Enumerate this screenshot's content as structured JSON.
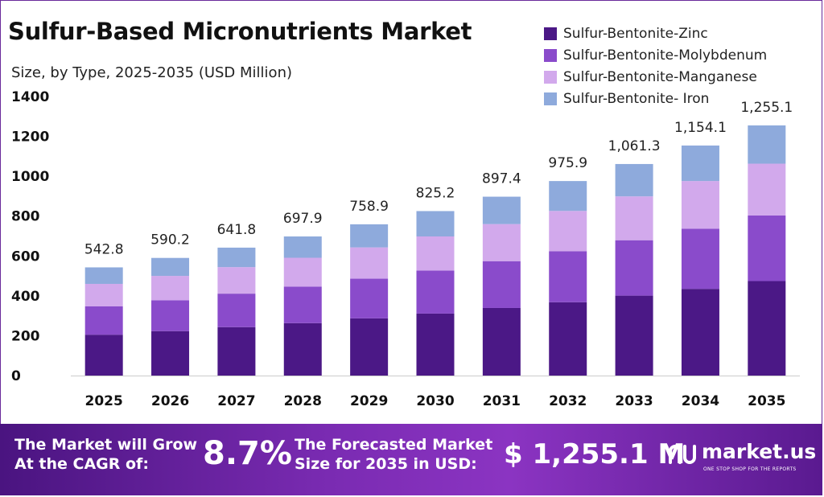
{
  "header": {
    "title": "Sulfur-Based Micronutrients Market",
    "subtitle": "Size, by Type, 2025-2035 (USD Million)"
  },
  "chart_data": {
    "type": "bar",
    "stacked": true,
    "title": "Sulfur-Based Micronutrients Market",
    "subtitle": "Size, by Type, 2025-2035 (USD Million)",
    "xlabel": "",
    "ylabel": "",
    "categories": [
      "2025",
      "2026",
      "2027",
      "2028",
      "2029",
      "2030",
      "2031",
      "2032",
      "2033",
      "2034",
      "2035"
    ],
    "ylim": [
      0,
      1400
    ],
    "yticks": [
      "0",
      "200",
      "400",
      "600",
      "800",
      "1000",
      "1200",
      "1400"
    ],
    "grid": false,
    "legend_position": "top-right",
    "series": [
      {
        "name": "Sulfur-Bentonite-Zinc",
        "color": "#4b1886",
        "values": [
          205,
          223,
          243,
          263,
          287,
          311,
          339,
          368,
          401,
          435,
          474
        ]
      },
      {
        "name": "Sulfur-Bentonite-Molybdenum",
        "color": "#8a4bcb",
        "values": [
          142,
          155,
          168,
          183,
          199,
          216,
          235,
          256,
          278,
          302,
          329
        ]
      },
      {
        "name": "Sulfur-Bentonite-Manganese",
        "color": "#d2a9ec",
        "values": [
          113,
          122,
          133,
          145,
          157,
          171,
          186,
          202,
          220,
          239,
          260
        ]
      },
      {
        "name": "Sulfur-Bentonite- Iron",
        "color": "#8eaadc",
        "values": [
          82.8,
          90.2,
          97.8,
          106.9,
          115.9,
          127.2,
          137.4,
          149.9,
          162.3,
          178.1,
          192.1
        ]
      }
    ],
    "totals": [
      542.8,
      590.2,
      641.8,
      697.9,
      758.9,
      825.2,
      897.4,
      975.9,
      1061.3,
      1154.1,
      1255.1
    ],
    "total_labels": [
      "542.8",
      "590.2",
      "641.8",
      "697.9",
      "758.9",
      "825.2",
      "897.4",
      "975.9",
      "1,061.3",
      "1,154.1",
      "1,255.1"
    ]
  },
  "banner": {
    "cagr_label_line1": "The Market will Grow",
    "cagr_label_line2": "At the CAGR of:",
    "cagr_value": "8.7%",
    "forecast_label_line1": "The Forecasted Market",
    "forecast_label_line2": "Size for 2035 in USD:",
    "forecast_value": "$ 1,255.1 M",
    "brand_name": "market.us",
    "brand_tagline": "ONE STOP SHOP FOR THE REPORTS"
  },
  "colors": {
    "banner_start": "#4a1480",
    "banner_end": "#5a1a90",
    "axis": "#cccccc",
    "frame": "#6a2a9a"
  }
}
